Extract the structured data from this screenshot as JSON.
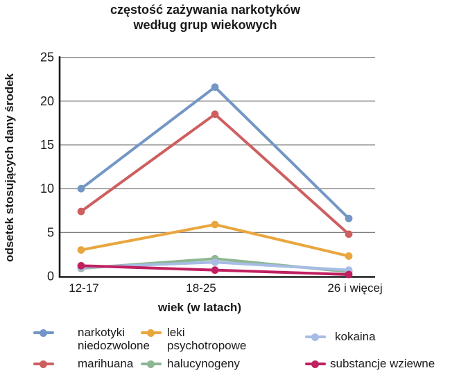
{
  "title": {
    "line1": "częstość zażywania narkotyków",
    "line2": "według grup wiekowych"
  },
  "axes": {
    "x_label": "wiek (w latach)",
    "y_label": "odsetek stosujących dany środek"
  },
  "chart_data": {
    "type": "line",
    "title": "częstość zażywania narkotyków według grup wiekowych",
    "xlabel": "wiek (w latach)",
    "ylabel": "odsetek stosujących dany środek",
    "categories": [
      "12-17",
      "18-25",
      "26 i więcej"
    ],
    "yticks": [
      0,
      5,
      10,
      15,
      20,
      25
    ],
    "ylim": [
      0,
      25
    ],
    "grid": "horizontal-gridlines-on",
    "legend_position": "bottom",
    "colors": {
      "gridline": "#7f7f7f",
      "axis": "#1a1a1a",
      "background": "#ffffff"
    },
    "series": [
      {
        "name": "narkotyki niedozwolone",
        "color": "#7396c5",
        "values": [
          10.0,
          21.6,
          6.6
        ]
      },
      {
        "name": "marihuana",
        "color": "#ce5f5f",
        "values": [
          7.4,
          18.5,
          4.8
        ]
      },
      {
        "name": "leki psychotropowe",
        "color": "#e9a63f",
        "values": [
          3.0,
          5.9,
          2.3
        ]
      },
      {
        "name": "halucynogeny",
        "color": "#8db692",
        "values": [
          0.9,
          2.0,
          0.5
        ]
      },
      {
        "name": "kokaina",
        "color": "#a6bce4",
        "values": [
          1.0,
          1.6,
          0.7
        ]
      },
      {
        "name": "substancje wziewne",
        "color": "#c02060",
        "values": [
          1.2,
          0.7,
          0.2
        ]
      }
    ]
  }
}
